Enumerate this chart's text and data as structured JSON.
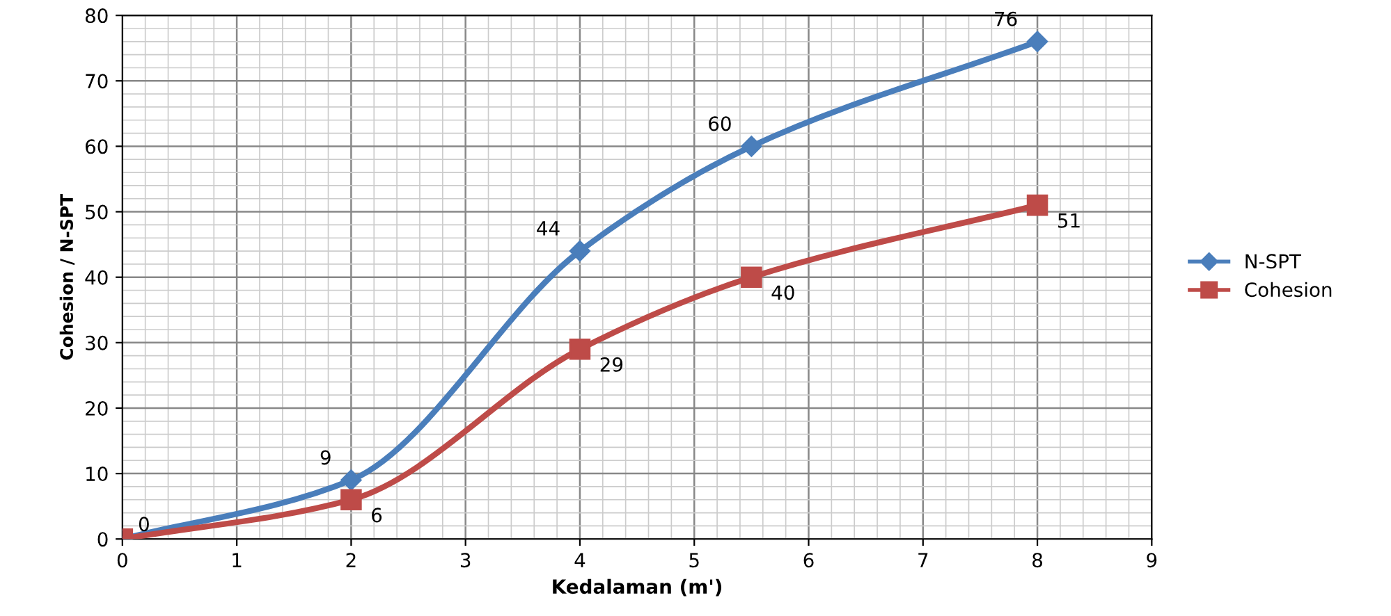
{
  "chart_data": {
    "type": "line",
    "xlabel": "Kedalaman (m')",
    "ylabel": "Cohesion / N-SPT",
    "x": [
      0,
      2,
      4,
      5.5,
      8
    ],
    "series": [
      {
        "name": "N-SPT",
        "color": "#4a7ebb",
        "values": [
          0,
          9,
          44,
          60,
          76
        ],
        "value_labels": [
          "0",
          "9",
          "44",
          "60",
          "76"
        ],
        "marker": "diamond"
      },
      {
        "name": "Cohesion",
        "color": "#be4b48",
        "values": [
          0,
          6,
          29,
          40,
          51
        ],
        "value_labels": [
          null,
          "6",
          "29",
          "40",
          "51"
        ],
        "marker": "square"
      }
    ],
    "xlim": [
      0,
      9
    ],
    "xticks": [
      0,
      1,
      2,
      3,
      4,
      5,
      6,
      7,
      8,
      9
    ],
    "ylim": [
      0,
      80
    ],
    "yticks": [
      0,
      10,
      20,
      30,
      40,
      50,
      60,
      70,
      80
    ],
    "grid": true,
    "legend": "right",
    "line_style": "solid"
  }
}
